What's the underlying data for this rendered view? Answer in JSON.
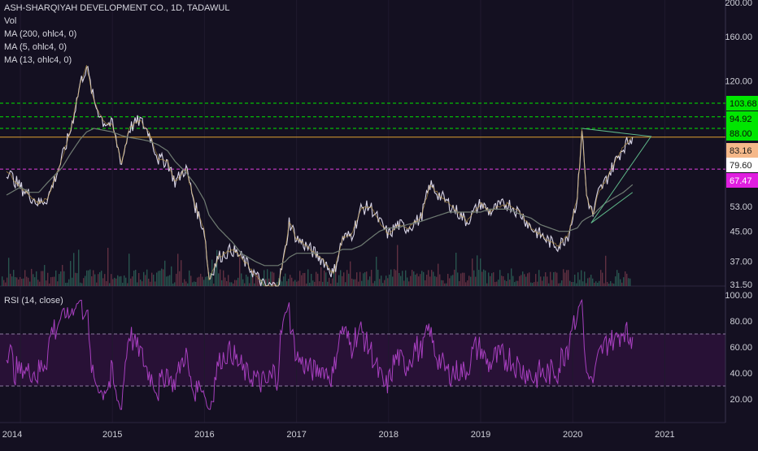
{
  "legend": {
    "title": "ASH-SHARQIYAH DEVELOPMENT CO., 1D, TADAWUL",
    "vol": "Vol",
    "ma200": "MA (200, ohlc4, 0)",
    "ma5": "MA (5, ohlc4, 0)",
    "ma13": "MA (13, ohlc4, 0)",
    "rsi": "RSI (14, close)"
  },
  "colors": {
    "background": "#141021",
    "price_line": "#d8d4e6",
    "ma200": "#6f7b72",
    "ma_short": "#c8a24a",
    "rsi_line": "#a73fbf",
    "rsi_band": "#2a1238",
    "green_level": "#00e600",
    "orange_level": "#e0a030",
    "magenta_level": "#e040e0",
    "triangle": "#5fb88a"
  },
  "chart_data": [
    {
      "type": "line",
      "title": "ASH-SHARQIYAH DEVELOPMENT CO., 1D, TADAWUL",
      "scale": "log",
      "ylim": [
        31.5,
        200
      ],
      "yticks": [
        "200.00",
        "160.00",
        "120.00",
        "53.00",
        "45.00",
        "37.00",
        "31.50"
      ],
      "xticks": [
        "2014",
        "2015",
        "2016",
        "2017",
        "2018",
        "2019",
        "2020",
        "2021"
      ],
      "x": [
        2013.85,
        2014.0,
        2014.1,
        2014.2,
        2014.3,
        2014.45,
        2014.55,
        2014.65,
        2014.72,
        2014.8,
        2014.9,
        2015.0,
        2015.1,
        2015.18,
        2015.3,
        2015.4,
        2015.5,
        2015.6,
        2015.68,
        2015.8,
        2015.9,
        2016.0,
        2016.05,
        2016.15,
        2016.3,
        2016.4,
        2016.55,
        2016.65,
        2016.72,
        2016.8,
        2016.88,
        2016.92,
        2017.0,
        2017.1,
        2017.2,
        2017.3,
        2017.4,
        2017.5,
        2017.6,
        2017.7,
        2017.8,
        2017.9,
        2018.0,
        2018.1,
        2018.2,
        2018.35,
        2018.45,
        2018.55,
        2018.65,
        2018.75,
        2018.85,
        2019.0,
        2019.1,
        2019.2,
        2019.3,
        2019.45,
        2019.55,
        2019.65,
        2019.75,
        2019.85,
        2019.95,
        2020.05,
        2020.1,
        2020.15,
        2020.22,
        2020.28,
        2020.35,
        2020.45,
        2020.55,
        2020.65
      ],
      "series": [
        {
          "values": [
            67,
            60,
            57,
            54,
            56,
            72,
            88,
            118,
            132,
            105,
            92,
            90,
            70,
            88,
            93,
            85,
            72,
            71,
            62,
            68,
            53,
            45,
            33,
            38,
            40,
            38,
            34,
            31.5,
            31.5,
            31.5,
            40,
            48,
            43,
            41,
            39,
            37,
            34,
            43,
            44,
            52,
            53,
            48,
            44,
            47,
            46,
            49,
            61,
            57,
            54,
            51,
            48,
            54,
            51,
            53,
            54,
            50,
            46,
            44,
            42,
            41,
            44,
            56,
            88,
            57,
            50,
            58,
            62,
            70,
            78,
            83.16
          ]
        },
        {
          "name": "MA (200, ohlc4, 0)",
          "values": [
            57,
            60,
            58,
            58,
            62,
            68,
            75,
            82,
            86,
            88,
            87,
            86,
            84,
            83,
            82,
            81,
            79,
            76,
            71,
            66,
            61,
            55,
            50,
            46,
            42,
            39,
            37,
            36,
            36,
            36,
            37,
            38,
            39,
            39,
            39,
            39,
            39,
            40,
            40,
            41,
            43,
            45,
            46,
            46,
            47,
            48,
            49,
            50,
            51,
            51,
            51,
            51,
            52,
            52,
            52,
            50,
            49,
            47,
            46,
            45,
            45,
            46,
            48,
            49,
            50,
            52,
            54,
            56,
            58,
            61
          ]
        }
      ],
      "rsi": {
        "ylim": [
          10,
          100
        ],
        "yticks": [
          "100.00",
          "80.00",
          "60.00",
          "40.00",
          "20.00"
        ],
        "levels": [
          70,
          30
        ]
      }
    }
  ],
  "price_tags": [
    {
      "label": "103.68",
      "value": 103.68,
      "kind": "green"
    },
    {
      "label": "94.92",
      "value": 94.92,
      "kind": "green"
    },
    {
      "label": "88.00",
      "value": 88.0,
      "kind": "green"
    },
    {
      "label": "83.16",
      "value": 83.16,
      "kind": "orange"
    },
    {
      "label": "79.60",
      "value": 79.6,
      "kind": "white"
    },
    {
      "label": "67.47",
      "value": 67.47,
      "kind": "magenta"
    }
  ]
}
